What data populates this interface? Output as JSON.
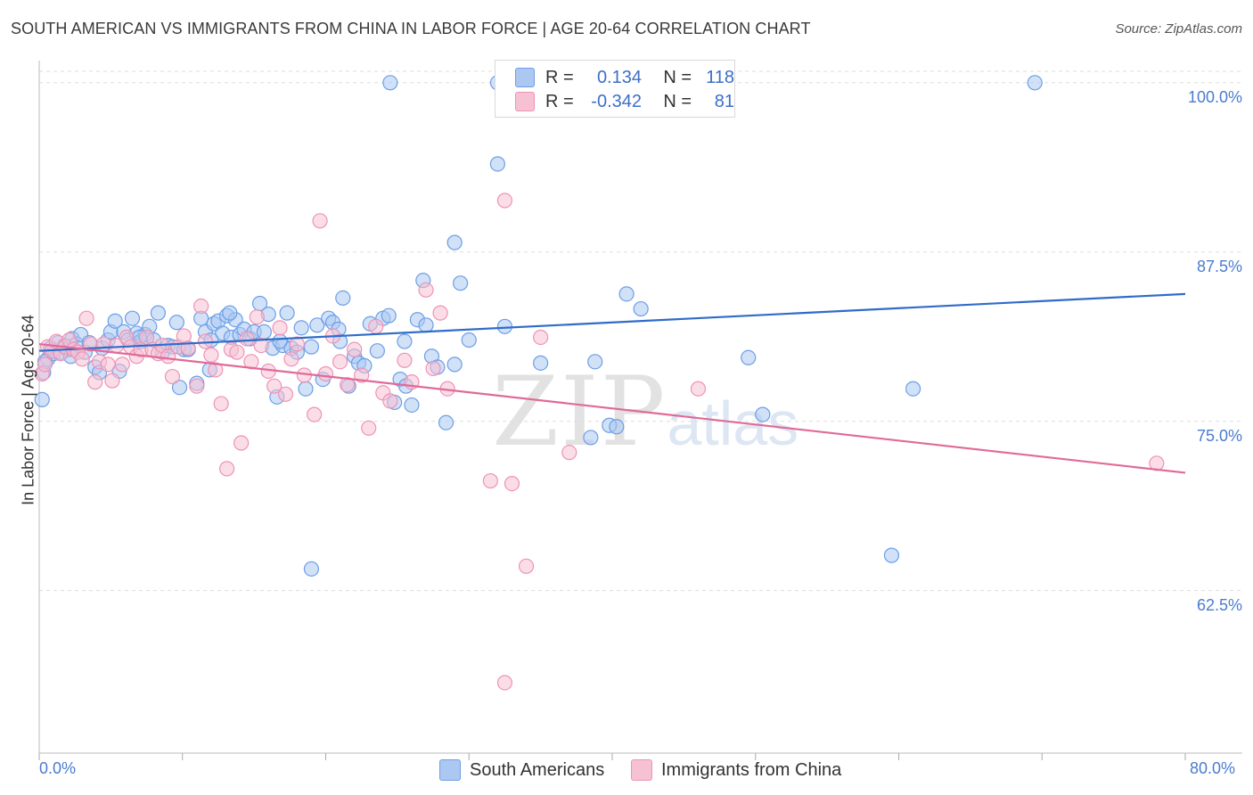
{
  "title": "SOUTH AMERICAN VS IMMIGRANTS FROM CHINA IN LABOR FORCE | AGE 20-64 CORRELATION CHART",
  "source": "Source: ZipAtlas.com",
  "watermark": {
    "zip": "ZIP",
    "atlas": "atlas"
  },
  "legend": {
    "r_label": "R =",
    "n_label": "N =",
    "rows": [
      {
        "r": "0.134",
        "n": "118"
      },
      {
        "r": "-0.342",
        "n": "81"
      }
    ]
  },
  "bottom_legend": [
    "South Americans",
    "Immigrants from China"
  ],
  "colors": {
    "blue_fill": "#aac8f2",
    "blue_stroke": "#6d9ee6",
    "blue_line": "#2f6cc9",
    "pink_fill": "#f7c1d4",
    "pink_stroke": "#ee93b4",
    "pink_line": "#e06a98",
    "grid": "#dddddd",
    "axis_text": "#4a7bd0"
  },
  "chart_data": {
    "type": "scatter",
    "title": "SOUTH AMERICAN VS IMMIGRANTS FROM CHINA IN LABOR FORCE | AGE 20-64 CORRELATION CHART",
    "xlabel": "",
    "ylabel": "In Labor Force | Age 20-64",
    "xlim": [
      0,
      80
    ],
    "ylim": [
      50.5,
      101.5
    ],
    "x_tick_labels": [
      "0.0%",
      "80.0%"
    ],
    "y_ticks": [
      62.5,
      75.0,
      87.5,
      100.0
    ],
    "y_tick_labels": [
      "62.5%",
      "75.0%",
      "87.5%",
      "100.0%"
    ],
    "grid": true,
    "legend_position": "top-center",
    "series": [
      {
        "name": "South Americans",
        "r": 0.134,
        "n": 118,
        "trend": {
          "x": [
            0,
            80
          ],
          "y": [
            80.2,
            84.4
          ]
        },
        "points": [
          [
            0.2,
            76.6
          ],
          [
            0.3,
            78.6
          ],
          [
            0.6,
            79.6
          ],
          [
            0.8,
            80.4
          ],
          [
            1.0,
            80.0
          ],
          [
            1.3,
            80.8
          ],
          [
            1.5,
            80.1
          ],
          [
            1.8,
            80.6
          ],
          [
            2.0,
            80.3
          ],
          [
            2.3,
            81.1
          ],
          [
            2.6,
            80.7
          ],
          [
            2.9,
            81.4
          ],
          [
            3.2,
            80.1
          ],
          [
            3.5,
            80.8
          ],
          [
            3.9,
            79.0
          ],
          [
            4.2,
            78.6
          ],
          [
            4.4,
            80.4
          ],
          [
            4.8,
            81.0
          ],
          [
            5.0,
            81.6
          ],
          [
            5.3,
            82.4
          ],
          [
            5.6,
            78.7
          ],
          [
            5.9,
            81.6
          ],
          [
            6.2,
            81.0
          ],
          [
            6.5,
            82.6
          ],
          [
            6.8,
            81.5
          ],
          [
            7.1,
            80.9
          ],
          [
            7.4,
            81.4
          ],
          [
            7.7,
            82.0
          ],
          [
            8.0,
            81.0
          ],
          [
            8.3,
            83.0
          ],
          [
            8.6,
            80.1
          ],
          [
            9.0,
            80.6
          ],
          [
            9.3,
            80.5
          ],
          [
            9.6,
            82.3
          ],
          [
            9.8,
            77.5
          ],
          [
            10.1,
            80.3
          ],
          [
            10.4,
            80.3
          ],
          [
            11.0,
            77.8
          ],
          [
            11.3,
            82.6
          ],
          [
            11.6,
            81.6
          ],
          [
            11.9,
            78.8
          ],
          [
            12.2,
            82.2
          ],
          [
            12.5,
            82.4
          ],
          [
            12.8,
            81.5
          ],
          [
            13.1,
            82.8
          ],
          [
            13.4,
            81.2
          ],
          [
            13.7,
            82.5
          ],
          [
            14.0,
            81.4
          ],
          [
            14.3,
            81.8
          ],
          [
            14.7,
            81.1
          ],
          [
            15.0,
            81.6
          ],
          [
            15.4,
            83.7
          ],
          [
            15.7,
            81.6
          ],
          [
            16.0,
            82.9
          ],
          [
            16.3,
            80.4
          ],
          [
            16.6,
            76.8
          ],
          [
            17.0,
            80.6
          ],
          [
            17.3,
            83.0
          ],
          [
            17.6,
            80.4
          ],
          [
            18.0,
            80.1
          ],
          [
            18.3,
            81.9
          ],
          [
            18.6,
            77.4
          ],
          [
            19.0,
            80.5
          ],
          [
            19.4,
            82.1
          ],
          [
            19.8,
            78.1
          ],
          [
            20.2,
            82.6
          ],
          [
            20.5,
            82.3
          ],
          [
            20.9,
            81.8
          ],
          [
            21.2,
            84.1
          ],
          [
            21.6,
            77.6
          ],
          [
            22.0,
            79.8
          ],
          [
            22.3,
            79.3
          ],
          [
            22.7,
            79.1
          ],
          [
            23.1,
            82.2
          ],
          [
            23.6,
            80.2
          ],
          [
            24.0,
            82.6
          ],
          [
            24.4,
            82.8
          ],
          [
            24.8,
            76.4
          ],
          [
            25.2,
            78.1
          ],
          [
            25.6,
            77.6
          ],
          [
            26.0,
            76.2
          ],
          [
            26.4,
            82.5
          ],
          [
            26.8,
            85.4
          ],
          [
            27.0,
            82.1
          ],
          [
            27.4,
            79.8
          ],
          [
            27.8,
            79.0
          ],
          [
            28.4,
            74.9
          ],
          [
            29.0,
            79.2
          ],
          [
            29.4,
            85.2
          ],
          [
            19.0,
            64.1
          ],
          [
            24.5,
            100.0
          ],
          [
            32.0,
            100.0
          ],
          [
            32.0,
            94.0
          ],
          [
            29.0,
            88.2
          ],
          [
            32.5,
            82.0
          ],
          [
            35.0,
            79.3
          ],
          [
            36.0,
            99.3
          ],
          [
            38.5,
            73.8
          ],
          [
            38.8,
            79.4
          ],
          [
            39.8,
            74.7
          ],
          [
            40.3,
            74.6
          ],
          [
            41.0,
            84.4
          ],
          [
            42.0,
            83.3
          ],
          [
            49.5,
            79.7
          ],
          [
            50.5,
            75.5
          ],
          [
            59.5,
            65.1
          ],
          [
            61.0,
            77.4
          ],
          [
            69.5,
            100.0
          ],
          [
            33.0,
            100.0
          ],
          [
            0.4,
            79.4
          ],
          [
            2.2,
            79.8
          ],
          [
            7.0,
            81.2
          ],
          [
            12.0,
            81.0
          ],
          [
            16.8,
            80.9
          ],
          [
            21.0,
            80.9
          ],
          [
            25.5,
            80.9
          ],
          [
            30.0,
            81.0
          ],
          [
            13.3,
            83.0
          ]
        ]
      },
      {
        "name": "Immigrants from China",
        "r": -0.342,
        "n": 81,
        "trend": {
          "x": [
            0,
            80
          ],
          "y": [
            80.7,
            71.2
          ]
        },
        "points": [
          [
            0.2,
            78.5
          ],
          [
            0.4,
            79.2
          ],
          [
            0.6,
            80.5
          ],
          [
            0.9,
            80.2
          ],
          [
            1.2,
            80.9
          ],
          [
            1.5,
            80.0
          ],
          [
            1.8,
            80.5
          ],
          [
            2.1,
            81.0
          ],
          [
            2.4,
            80.3
          ],
          [
            2.7,
            80.1
          ],
          [
            3.0,
            79.6
          ],
          [
            3.3,
            82.6
          ],
          [
            3.6,
            80.7
          ],
          [
            3.9,
            77.9
          ],
          [
            4.2,
            79.4
          ],
          [
            4.5,
            80.7
          ],
          [
            4.8,
            79.2
          ],
          [
            5.1,
            78.0
          ],
          [
            5.4,
            80.6
          ],
          [
            5.8,
            79.2
          ],
          [
            6.1,
            81.2
          ],
          [
            6.4,
            80.5
          ],
          [
            6.8,
            79.8
          ],
          [
            7.1,
            80.3
          ],
          [
            7.5,
            81.2
          ],
          [
            7.9,
            80.3
          ],
          [
            8.3,
            80.0
          ],
          [
            8.6,
            80.6
          ],
          [
            9.0,
            79.8
          ],
          [
            9.3,
            78.3
          ],
          [
            9.7,
            80.5
          ],
          [
            10.1,
            81.3
          ],
          [
            10.4,
            80.4
          ],
          [
            11.0,
            77.6
          ],
          [
            11.3,
            83.5
          ],
          [
            11.6,
            80.9
          ],
          [
            12.0,
            79.9
          ],
          [
            12.3,
            78.8
          ],
          [
            12.7,
            76.3
          ],
          [
            13.1,
            71.5
          ],
          [
            13.4,
            80.3
          ],
          [
            13.8,
            80.1
          ],
          [
            14.1,
            73.4
          ],
          [
            14.5,
            81.1
          ],
          [
            14.8,
            79.4
          ],
          [
            15.2,
            82.7
          ],
          [
            15.5,
            80.6
          ],
          [
            16.0,
            78.7
          ],
          [
            16.4,
            77.6
          ],
          [
            16.8,
            81.9
          ],
          [
            17.2,
            77.0
          ],
          [
            17.6,
            79.6
          ],
          [
            18.0,
            80.7
          ],
          [
            18.5,
            78.4
          ],
          [
            19.2,
            75.5
          ],
          [
            19.6,
            89.8
          ],
          [
            20.0,
            78.5
          ],
          [
            20.5,
            81.3
          ],
          [
            21.0,
            79.4
          ],
          [
            21.5,
            77.7
          ],
          [
            22.0,
            80.3
          ],
          [
            22.5,
            78.4
          ],
          [
            23.0,
            74.5
          ],
          [
            23.5,
            82.0
          ],
          [
            24.0,
            77.1
          ],
          [
            24.5,
            76.5
          ],
          [
            25.5,
            79.5
          ],
          [
            26.0,
            77.9
          ],
          [
            27.0,
            84.7
          ],
          [
            27.5,
            78.9
          ],
          [
            28.0,
            83.0
          ],
          [
            28.5,
            77.4
          ],
          [
            31.5,
            70.6
          ],
          [
            32.5,
            91.3
          ],
          [
            33.0,
            70.4
          ],
          [
            34.0,
            64.3
          ],
          [
            35.0,
            81.2
          ],
          [
            37.0,
            72.7
          ],
          [
            46.0,
            77.4
          ],
          [
            78.0,
            71.9
          ],
          [
            32.5,
            55.7
          ]
        ]
      }
    ]
  }
}
